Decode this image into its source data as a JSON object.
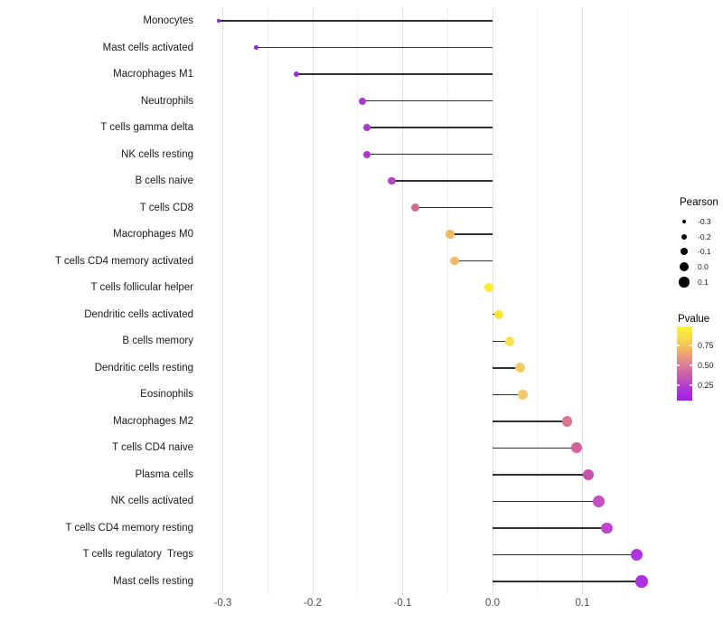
{
  "chart_data": {
    "type": "scatter",
    "subtype": "lollipop",
    "title": "",
    "xlabel": "",
    "ylabel": "",
    "xlim": [
      -0.32,
      0.18
    ],
    "grid": "vertical major and minor gridlines only",
    "x_ticks": [
      {
        "label": "-0.3",
        "value": -0.3
      },
      {
        "label": "-0.2",
        "value": -0.2
      },
      {
        "label": "-0.1",
        "value": -0.1
      },
      {
        "label": "0.0",
        "value": 0.0
      },
      {
        "label": "0.1",
        "value": 0.1
      }
    ],
    "x_minor_ticks": [
      -0.25,
      -0.15,
      -0.05,
      0.05,
      0.15
    ],
    "points": [
      {
        "label": "Monocytes",
        "pearson": -0.305,
        "color": "#8727DF",
        "size": 4
      },
      {
        "label": "Mast cells activated",
        "pearson": -0.263,
        "color": "#8D2BD7",
        "size": 5.5
      },
      {
        "label": "Macrophages M1",
        "pearson": -0.218,
        "color": "#9830D0",
        "size": 6.5
      },
      {
        "label": "Neutrophils",
        "pearson": -0.145,
        "color": "#A83BCB",
        "size": 8
      },
      {
        "label": "T cells gamma delta",
        "pearson": -0.14,
        "color": "#A83BCB",
        "size": 8
      },
      {
        "label": "NK cells resting",
        "pearson": -0.14,
        "color": "#A93CCA",
        "size": 8
      },
      {
        "label": "B cells naive",
        "pearson": -0.112,
        "color": "#B546C3",
        "size": 8.5
      },
      {
        "label": "T cells CD8",
        "pearson": -0.086,
        "color": "#CF6D90",
        "size": 9
      },
      {
        "label": "Macrophages M0",
        "pearson": -0.047,
        "color": "#F0BA62",
        "size": 9.5
      },
      {
        "label": "T cells CD4 memory activated",
        "pearson": -0.042,
        "color": "#F0BA62",
        "size": 9.5
      },
      {
        "label": "T cells follicular helper",
        "pearson": -0.004,
        "color": "#FBEC30",
        "size": 10
      },
      {
        "label": "Dendritic cells activated",
        "pearson": 0.007,
        "color": "#F9E83A",
        "size": 10.5
      },
      {
        "label": "B cells memory",
        "pearson": 0.019,
        "color": "#F7E254",
        "size": 10.5
      },
      {
        "label": "Dendritic cells resting",
        "pearson": 0.031,
        "color": "#F2CC68",
        "size": 11
      },
      {
        "label": "Eosinophils",
        "pearson": 0.034,
        "color": "#F2CA6B",
        "size": 11
      },
      {
        "label": "Macrophages M2",
        "pearson": 0.083,
        "color": "#D97990",
        "size": 11.5
      },
      {
        "label": "T cells CD4 naive",
        "pearson": 0.093,
        "color": "#D2619B",
        "size": 12
      },
      {
        "label": "Plasma cells",
        "pearson": 0.107,
        "color": "#C653AC",
        "size": 12
      },
      {
        "label": "NK cells activated",
        "pearson": 0.118,
        "color": "#C44FBF",
        "size": 12.5
      },
      {
        "label": "T cells CD4 memory resting",
        "pearson": 0.127,
        "color": "#BD47C9",
        "size": 12.5
      },
      {
        "label": "T cells regulatory  Tregs",
        "pearson": 0.16,
        "color": "#AE34DC",
        "size": 13
      },
      {
        "label": "Mast cells resting",
        "pearson": 0.166,
        "color": "#AC31DE",
        "size": 13.5
      }
    ],
    "legend": {
      "size": {
        "title": "Pearson",
        "items": [
          {
            "label": "-0.3"
          },
          {
            "label": "-0.2"
          },
          {
            "label": "-0.1"
          },
          {
            "label": "0.0"
          },
          {
            "label": "0.1"
          }
        ],
        "dot_color": "#000000"
      },
      "color": {
        "title": "Pvalue",
        "ticks": [
          {
            "label": "0.75",
            "value": 0.75
          },
          {
            "label": "0.50",
            "value": 0.5
          },
          {
            "label": "0.25",
            "value": 0.25
          }
        ],
        "gradient_stops": [
          "#FBF539",
          "#F6D94E",
          "#F0AF68",
          "#DF8292",
          "#C85CAF",
          "#B138D3",
          "#A11DE9"
        ]
      }
    },
    "colors": {
      "background": "#FFFFFF",
      "stem": "#303030",
      "grid_major": "#E0E0E0",
      "grid_minor": "#F1F1F1",
      "axis_text": "#4D4D4D",
      "label_text": "#1A1A1A"
    }
  }
}
